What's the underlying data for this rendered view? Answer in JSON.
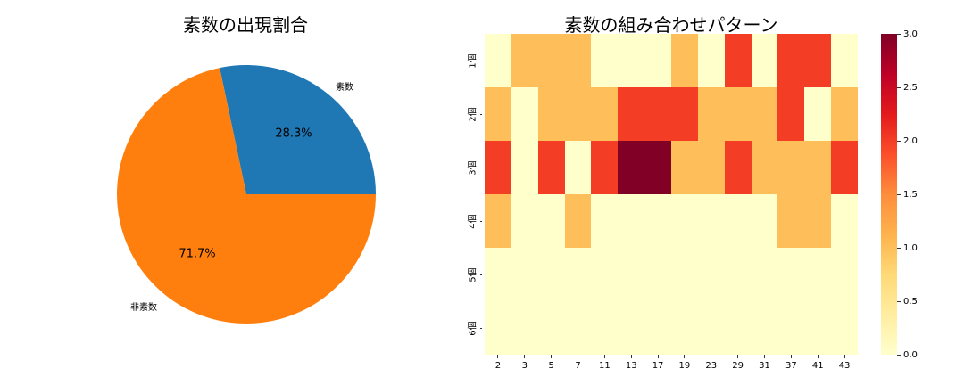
{
  "chart_data": [
    {
      "type": "pie",
      "title": "素数の出現割合",
      "labels": [
        "素数",
        "非素数"
      ],
      "values": [
        28.3,
        71.7
      ],
      "autopct_labels": [
        "28.3%",
        "71.7%"
      ],
      "colors": [
        "#1f77b4",
        "#ff7f0e"
      ],
      "startangle": 0
    },
    {
      "type": "heatmap",
      "title": "素数の組み合わせパターン",
      "x": [
        "2",
        "3",
        "5",
        "7",
        "11",
        "13",
        "17",
        "19",
        "23",
        "29",
        "31",
        "37",
        "41",
        "43"
      ],
      "y": [
        "1個",
        "2個",
        "3個",
        "4個",
        "5個",
        "6個"
      ],
      "values": [
        [
          0,
          1,
          1,
          1,
          0,
          0,
          0,
          1,
          0,
          2,
          0,
          2,
          2,
          0
        ],
        [
          1,
          0,
          1,
          1,
          1,
          2,
          2,
          2,
          1,
          1,
          1,
          2,
          0,
          1
        ],
        [
          2,
          0,
          2,
          0,
          2,
          3,
          3,
          1,
          1,
          2,
          1,
          1,
          1,
          2
        ],
        [
          1,
          0,
          0,
          1,
          0,
          0,
          0,
          0,
          0,
          0,
          0,
          1,
          1,
          0
        ],
        [
          0,
          0,
          0,
          0,
          0,
          0,
          0,
          0,
          0,
          0,
          0,
          0,
          0,
          0
        ],
        [
          0,
          0,
          0,
          0,
          0,
          0,
          0,
          0,
          0,
          0,
          0,
          0,
          0,
          0
        ]
      ],
      "colormap": "YlOrRd",
      "vmin": 0,
      "vmax": 3,
      "colorbar_ticks": [
        "0.0",
        "0.5",
        "1.0",
        "1.5",
        "2.0",
        "2.5",
        "3.0"
      ],
      "xlabel": "",
      "ylabel": ""
    }
  ],
  "pie": {
    "title": "素数の出現割合",
    "label_prime": "素数",
    "label_nonprime": "非素数",
    "pct_prime": "28.3%",
    "pct_nonprime": "71.7%",
    "color_prime": "#1f77b4",
    "color_nonprime": "#ff7f0e"
  },
  "heatmap": {
    "title": "素数の組み合わせパターン",
    "colors": {
      "0": "#ffffcc",
      "1": "#febf5a",
      "2": "#f43d25",
      "3": "#800026"
    }
  }
}
